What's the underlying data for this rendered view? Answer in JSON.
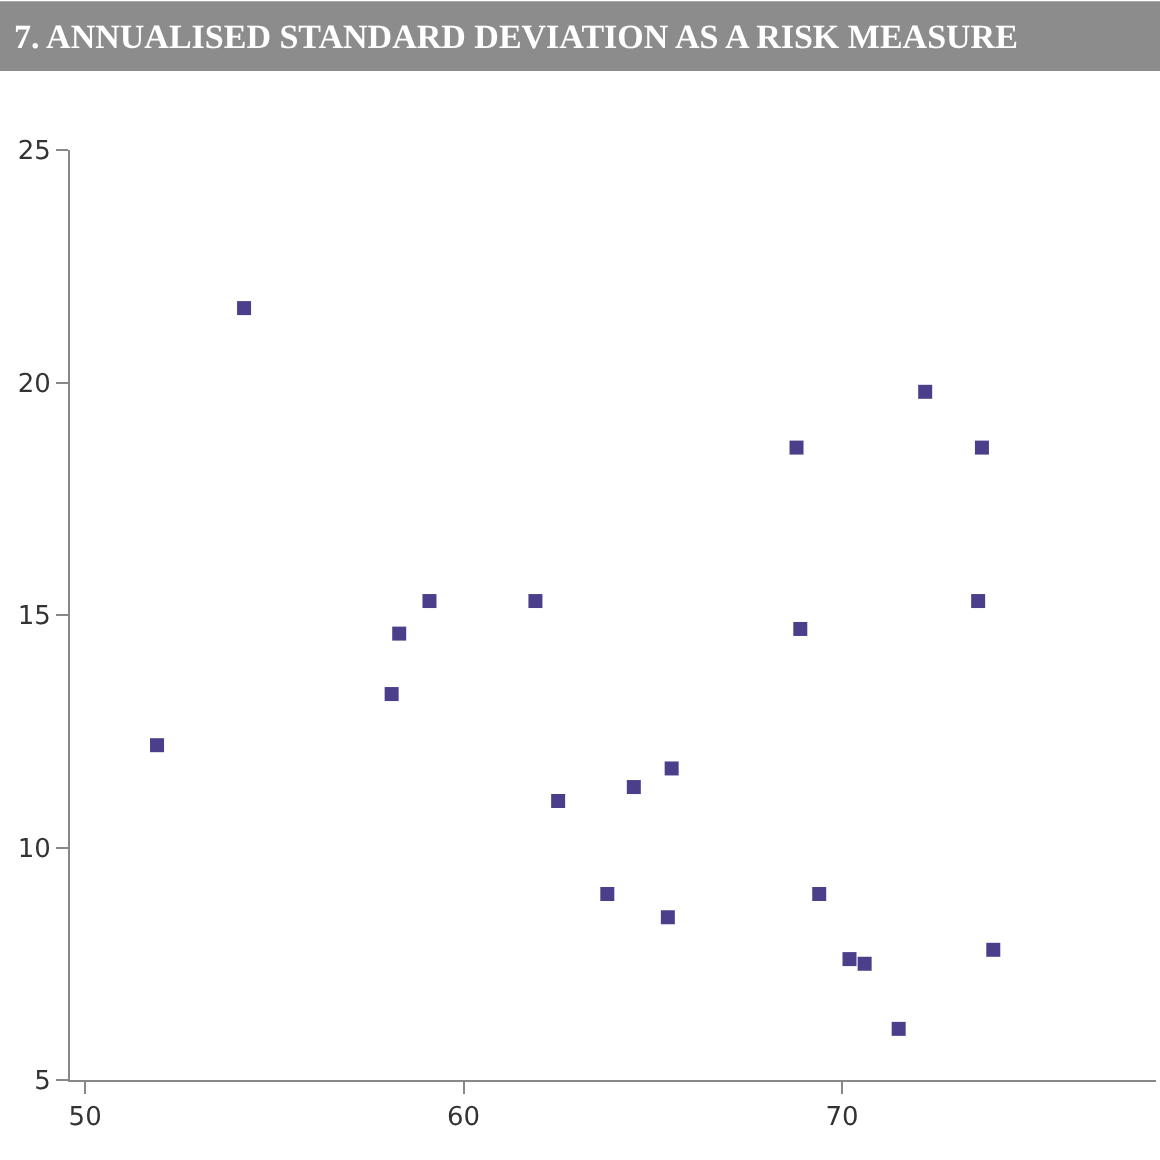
{
  "chart_data": {
    "type": "scatter",
    "title": "7. ANNUALISED STANDARD DEVIATION AS A RISK MEASURE",
    "x": [
      51.9,
      54.2,
      58.1,
      58.3,
      59.1,
      61.9,
      62.5,
      63.8,
      64.5,
      65.4,
      65.5,
      68.8,
      68.9,
      69.4,
      70.2,
      70.6,
      71.5,
      72.2,
      73.6,
      73.7,
      74.0
    ],
    "series": [
      {
        "color": "#4b3f8c",
        "values": [
          12.2,
          21.6,
          13.3,
          14.6,
          15.3,
          15.3,
          11.0,
          9.0,
          11.3,
          8.5,
          11.7,
          18.6,
          14.7,
          9.0,
          7.6,
          7.5,
          6.1,
          19.8,
          15.3,
          18.6,
          7.8
        ]
      }
    ],
    "xlim": [
      49.6,
      78.3
    ],
    "xticks": [
      50,
      60,
      70
    ],
    "ylim": [
      5,
      25
    ],
    "yticks": [
      5,
      10,
      15,
      20,
      25
    ],
    "marker": "square",
    "legend": false
  }
}
